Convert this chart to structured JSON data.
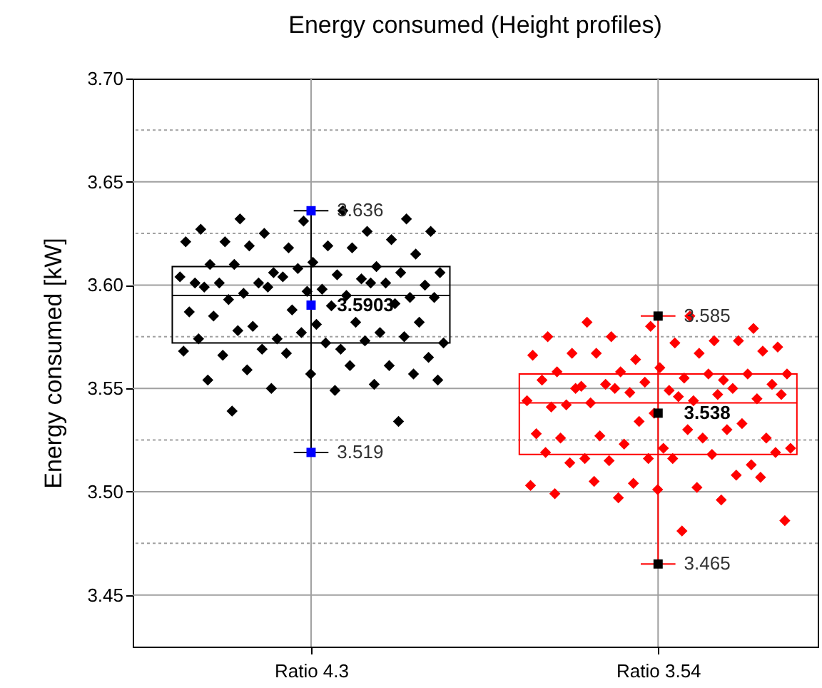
{
  "chart_data": {
    "type": "box",
    "title": "Energy consumed (Height profiles)",
    "ylabel": "Energy consumed [kW]",
    "categories": [
      "Ratio 4.3",
      "Ratio 3.54"
    ],
    "boxes": [
      {
        "low": 3.519,
        "q1": 3.572,
        "median": 3.595,
        "q3": 3.609,
        "high": 3.636
      },
      {
        "low": 3.465,
        "q1": 3.518,
        "median": 3.543,
        "q3": 3.557,
        "high": 3.585
      }
    ],
    "colors": [
      "#000000",
      "#ff0000"
    ],
    "ylim": [
      3.425,
      3.7
    ],
    "yticks": [
      {
        "value": 3.45,
        "label": "3.45"
      },
      {
        "value": 3.475,
        "label": null
      },
      {
        "value": 3.5,
        "label": "3.50"
      },
      {
        "value": 3.525,
        "label": null
      },
      {
        "value": 3.55,
        "label": "3.55"
      },
      {
        "value": 3.575,
        "label": null
      },
      {
        "value": 3.6,
        "label": "3.60"
      },
      {
        "value": 3.625,
        "label": null
      },
      {
        "value": 3.65,
        "label": "3.65"
      },
      {
        "value": 3.675,
        "label": null
      },
      {
        "value": 3.7,
        "label": "3.70"
      }
    ],
    "grid": true,
    "series": [
      {
        "type": "scatter",
        "marker": "diamond",
        "color": "#000000",
        "x": [
          "Ratio 4.3",
          "Ratio 4.3",
          "Ratio 4.3",
          "Ratio 4.3",
          "Ratio 4.3",
          "Ratio 4.3",
          "Ratio 4.3",
          "Ratio 4.3",
          "Ratio 4.3",
          "Ratio 4.3",
          "Ratio 4.3",
          "Ratio 4.3",
          "Ratio 4.3",
          "Ratio 4.3",
          "Ratio 4.3",
          "Ratio 4.3",
          "Ratio 4.3",
          "Ratio 4.3",
          "Ratio 4.3",
          "Ratio 4.3",
          "Ratio 4.3",
          "Ratio 4.3",
          "Ratio 4.3",
          "Ratio 4.3",
          "Ratio 4.3",
          "Ratio 4.3",
          "Ratio 4.3",
          "Ratio 4.3",
          "Ratio 4.3",
          "Ratio 4.3",
          "Ratio 4.3",
          "Ratio 4.3",
          "Ratio 4.3",
          "Ratio 4.3",
          "Ratio 4.3",
          "Ratio 4.3",
          "Ratio 4.3",
          "Ratio 4.3",
          "Ratio 4.3",
          "Ratio 4.3",
          "Ratio 4.3",
          "Ratio 4.3",
          "Ratio 4.3",
          "Ratio 4.3",
          "Ratio 4.3",
          "Ratio 4.3",
          "Ratio 4.3",
          "Ratio 4.3",
          "Ratio 4.3",
          "Ratio 4.3",
          "Ratio 4.3",
          "Ratio 4.3",
          "Ratio 4.3",
          "Ratio 4.3",
          "Ratio 4.3",
          "Ratio 4.3",
          "Ratio 4.3",
          "Ratio 4.3",
          "Ratio 4.3",
          "Ratio 4.3",
          "Ratio 4.3",
          "Ratio 4.3",
          "Ratio 4.3",
          "Ratio 4.3",
          "Ratio 4.3",
          "Ratio 4.3",
          "Ratio 4.3",
          "Ratio 4.3",
          "Ratio 4.3",
          "Ratio 4.3",
          "Ratio 4.3",
          "Ratio 4.3",
          "Ratio 4.3",
          "Ratio 4.3",
          "Ratio 4.3",
          "Ratio 4.3",
          "Ratio 4.3",
          "Ratio 4.3",
          "Ratio 4.3"
        ],
        "values": [
          3.636,
          3.632,
          3.632,
          3.631,
          3.627,
          3.626,
          3.625,
          3.626,
          3.619,
          3.621,
          3.622,
          3.618,
          3.621,
          3.618,
          3.619,
          3.615,
          3.611,
          3.61,
          3.609,
          3.606,
          3.606,
          3.605,
          3.61,
          3.606,
          3.608,
          3.601,
          3.603,
          3.601,
          3.6,
          3.598,
          3.601,
          3.601,
          3.604,
          3.604,
          3.595,
          3.596,
          3.594,
          3.597,
          3.599,
          3.601,
          3.599,
          3.594,
          3.59,
          3.593,
          3.591,
          3.588,
          3.587,
          3.582,
          3.58,
          3.582,
          3.581,
          3.585,
          3.577,
          3.574,
          3.572,
          3.569,
          3.578,
          3.575,
          3.577,
          3.574,
          3.573,
          3.569,
          3.565,
          3.572,
          3.566,
          3.561,
          3.567,
          3.568,
          3.561,
          3.559,
          3.557,
          3.557,
          3.554,
          3.552,
          3.55,
          3.554,
          3.549,
          3.539,
          3.534
        ]
      },
      {
        "type": "scatter",
        "marker": "diamond",
        "color": "#ff0000",
        "x": [
          "Ratio 3.54",
          "Ratio 3.54",
          "Ratio 3.54",
          "Ratio 3.54",
          "Ratio 3.54",
          "Ratio 3.54",
          "Ratio 3.54",
          "Ratio 3.54",
          "Ratio 3.54",
          "Ratio 3.54",
          "Ratio 3.54",
          "Ratio 3.54",
          "Ratio 3.54",
          "Ratio 3.54",
          "Ratio 3.54",
          "Ratio 3.54",
          "Ratio 3.54",
          "Ratio 3.54",
          "Ratio 3.54",
          "Ratio 3.54",
          "Ratio 3.54",
          "Ratio 3.54",
          "Ratio 3.54",
          "Ratio 3.54",
          "Ratio 3.54",
          "Ratio 3.54",
          "Ratio 3.54",
          "Ratio 3.54",
          "Ratio 3.54",
          "Ratio 3.54",
          "Ratio 3.54",
          "Ratio 3.54",
          "Ratio 3.54",
          "Ratio 3.54",
          "Ratio 3.54",
          "Ratio 3.54",
          "Ratio 3.54",
          "Ratio 3.54",
          "Ratio 3.54",
          "Ratio 3.54",
          "Ratio 3.54",
          "Ratio 3.54",
          "Ratio 3.54",
          "Ratio 3.54",
          "Ratio 3.54",
          "Ratio 3.54",
          "Ratio 3.54",
          "Ratio 3.54",
          "Ratio 3.54",
          "Ratio 3.54",
          "Ratio 3.54",
          "Ratio 3.54",
          "Ratio 3.54",
          "Ratio 3.54",
          "Ratio 3.54",
          "Ratio 3.54",
          "Ratio 3.54",
          "Ratio 3.54",
          "Ratio 3.54",
          "Ratio 3.54",
          "Ratio 3.54",
          "Ratio 3.54",
          "Ratio 3.54",
          "Ratio 3.54",
          "Ratio 3.54",
          "Ratio 3.54",
          "Ratio 3.54",
          "Ratio 3.54",
          "Ratio 3.54",
          "Ratio 3.54",
          "Ratio 3.54",
          "Ratio 3.54",
          "Ratio 3.54",
          "Ratio 3.54",
          "Ratio 3.54",
          "Ratio 3.54",
          "Ratio 3.54"
        ],
        "values": [
          3.585,
          3.582,
          3.579,
          3.58,
          3.575,
          3.573,
          3.575,
          3.57,
          3.572,
          3.567,
          3.573,
          3.564,
          3.566,
          3.567,
          3.567,
          3.568,
          3.56,
          3.558,
          3.554,
          3.558,
          3.557,
          3.555,
          3.551,
          3.557,
          3.553,
          3.554,
          3.557,
          3.552,
          3.552,
          3.549,
          3.542,
          3.55,
          3.548,
          3.544,
          3.544,
          3.543,
          3.545,
          3.538,
          3.541,
          3.547,
          3.55,
          3.547,
          3.546,
          3.55,
          3.533,
          3.534,
          3.528,
          3.526,
          3.527,
          3.526,
          3.521,
          3.526,
          3.53,
          3.523,
          3.521,
          3.53,
          3.516,
          3.513,
          3.516,
          3.519,
          3.518,
          3.515,
          3.519,
          3.516,
          3.514,
          3.508,
          3.504,
          3.503,
          3.502,
          3.505,
          3.507,
          3.501,
          3.499,
          3.496,
          3.497,
          3.486,
          3.481
        ]
      },
      {
        "type": "scatter",
        "marker": "square",
        "color": "#0000ff",
        "x": [
          "Ratio 4.3",
          "Ratio 4.3",
          "Ratio 4.3"
        ],
        "values": [
          3.636,
          3.5903,
          3.519
        ]
      },
      {
        "type": "scatter",
        "marker": "square",
        "color": "#000000",
        "x": [
          "Ratio 3.54",
          "Ratio 3.54",
          "Ratio 3.54"
        ],
        "values": [
          3.585,
          3.538,
          3.465
        ]
      }
    ],
    "annotations": [
      {
        "text": "3.636",
        "x": "Ratio 4.3",
        "y": 3.636
      },
      {
        "text": "3.5903",
        "x": "Ratio 4.3",
        "y": 3.5903
      },
      {
        "text": "3.519",
        "x": "Ratio 4.3",
        "y": 3.519
      },
      {
        "text": "3.585",
        "x": "Ratio 3.54",
        "y": 3.585
      },
      {
        "text": "3.538",
        "x": "Ratio 3.54",
        "y": 3.538
      },
      {
        "text": "3.465",
        "x": "Ratio 3.54",
        "y": 3.465
      }
    ]
  }
}
